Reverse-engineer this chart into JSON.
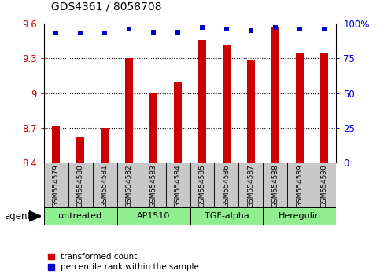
{
  "title": "GDS4361 / 8058708",
  "samples": [
    "GSM554579",
    "GSM554580",
    "GSM554581",
    "GSM554582",
    "GSM554583",
    "GSM554584",
    "GSM554585",
    "GSM554586",
    "GSM554587",
    "GSM554588",
    "GSM554589",
    "GSM554590"
  ],
  "red_values": [
    8.72,
    8.62,
    8.7,
    9.3,
    9.0,
    9.1,
    9.46,
    9.42,
    9.28,
    9.57,
    9.35,
    9.35
  ],
  "blue_values": [
    93,
    93,
    93,
    96,
    94,
    94,
    97,
    96,
    95,
    97,
    96,
    96
  ],
  "ylim_left": [
    8.4,
    9.6
  ],
  "ylim_right": [
    0,
    100
  ],
  "yticks_left": [
    8.4,
    8.7,
    9.0,
    9.3,
    9.6
  ],
  "yticks_right": [
    0,
    25,
    50,
    75,
    100
  ],
  "ytick_labels_left": [
    "8.4",
    "8.7",
    "9",
    "9.3",
    "9.6"
  ],
  "ytick_labels_right": [
    "0",
    "25",
    "50",
    "75",
    "100%"
  ],
  "groups": [
    {
      "label": "untreated",
      "start": 0,
      "end": 3
    },
    {
      "label": "AP1510",
      "start": 3,
      "end": 6
    },
    {
      "label": "TGF-alpha",
      "start": 6,
      "end": 9
    },
    {
      "label": "Heregulin",
      "start": 9,
      "end": 12
    }
  ],
  "bar_color": "#cc0000",
  "dot_color": "#0000cc",
  "group_bg_color": "#90ee90",
  "group_bg_color2": "#a8f0a8",
  "sample_bg_color": "#c8c8c8",
  "bg_color": "#ffffff",
  "grid_color": "#000000",
  "legend_red_label": "transformed count",
  "legend_blue_label": "percentile rank within the sample",
  "agent_label": "agent",
  "bar_width": 0.35,
  "bar_bottom": 8.4,
  "fig_width": 4.83,
  "fig_height": 3.54,
  "dpi": 100
}
